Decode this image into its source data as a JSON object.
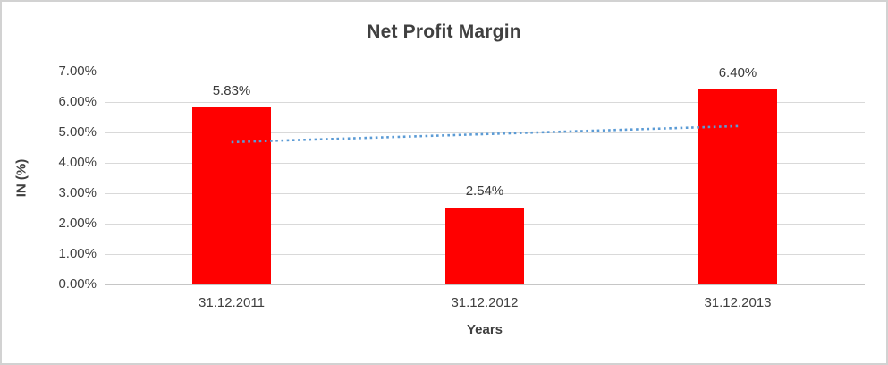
{
  "chart": {
    "title": "Net Profit Margin",
    "y_axis_title": "IN (%)",
    "x_axis_title": "Years"
  },
  "chart_data": {
    "type": "bar",
    "title": "Net Profit Margin",
    "categories": [
      "31.12.2011",
      "31.12.2012",
      "31.12.2013"
    ],
    "values": [
      5.83,
      2.54,
      6.4
    ],
    "data_labels": [
      "5.83%",
      "2.54%",
      "6.40%"
    ],
    "xlabel": "Years",
    "ylabel": "IN (%)",
    "ylim": [
      0,
      7
    ],
    "y_tick_step": 1,
    "y_tick_labels": [
      "0.00%",
      "1.00%",
      "2.00%",
      "3.00%",
      "4.00%",
      "5.00%",
      "6.00%",
      "7.00%"
    ],
    "grid": true,
    "legend": "none",
    "colors": {
      "bar": "#ff0000",
      "trendline": "#5b9bd5",
      "gridline": "#d9d9d9",
      "axis_line": "#c6c6c6"
    },
    "trendline": {
      "style": "dotted",
      "start_value": 4.68,
      "end_value": 5.21
    }
  }
}
